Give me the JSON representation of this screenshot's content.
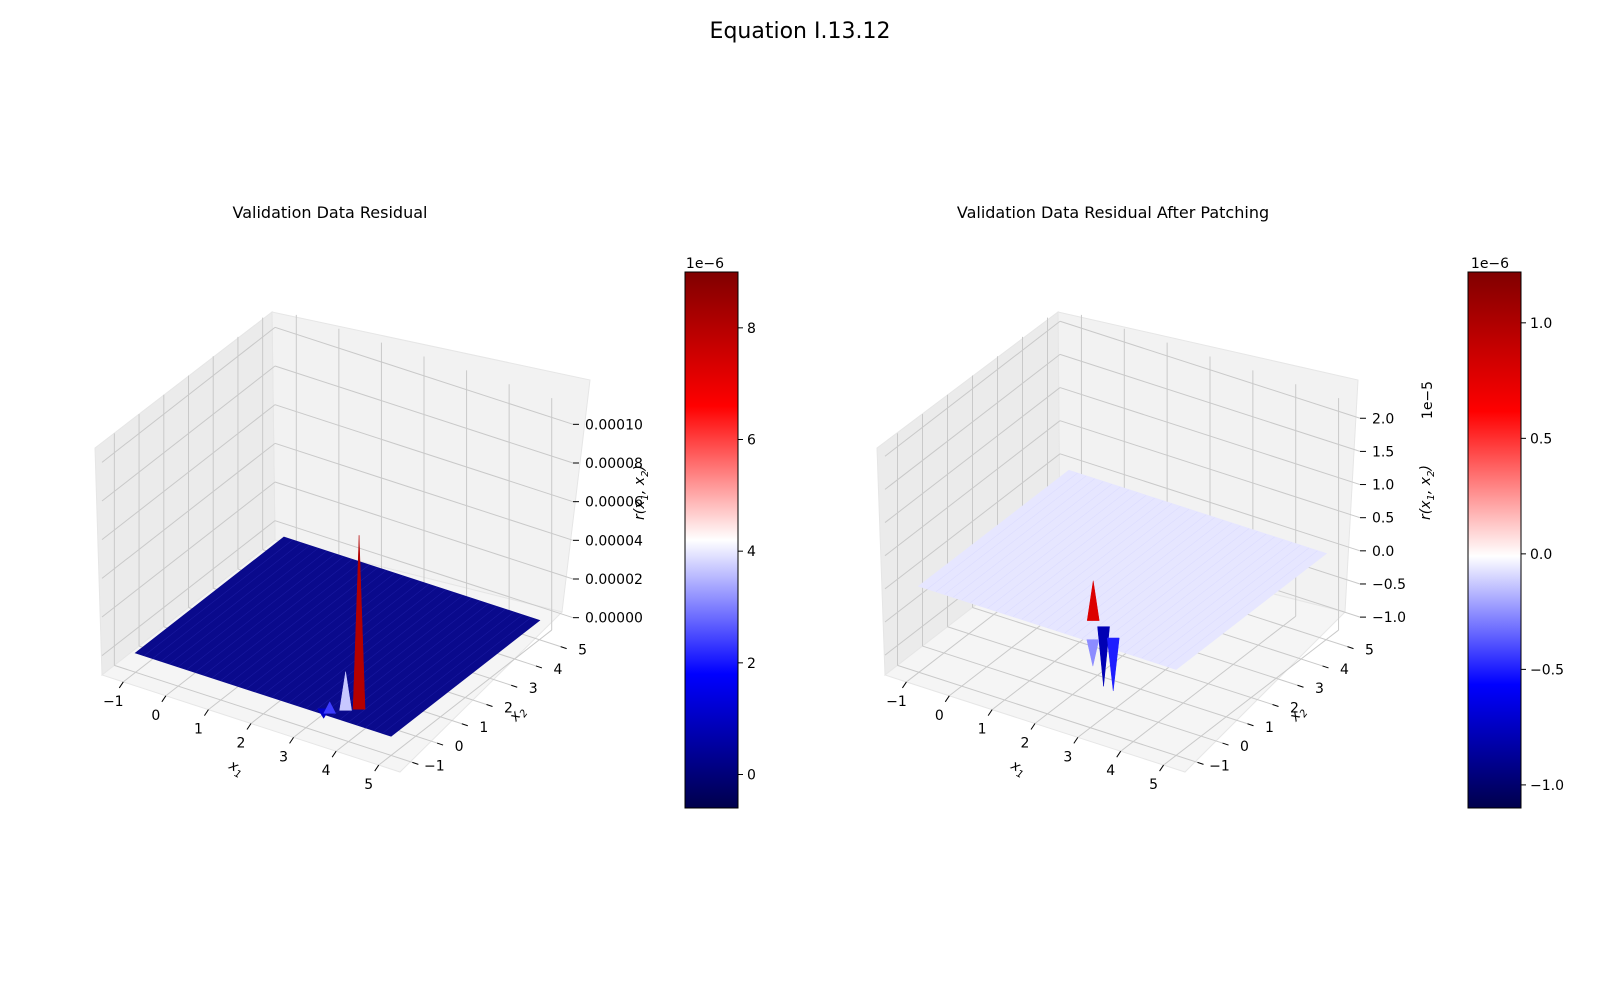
{
  "figure": {
    "title": "Equation I.13.12"
  },
  "chart_data": [
    {
      "type": "surface",
      "title": "Validation Data Residual",
      "xlabel": "x1",
      "ylabel": "x2",
      "zlabel": "r(x1, x2)",
      "xlim": [
        -1.5,
        5.5
      ],
      "ylim": [
        -1.5,
        5.5
      ],
      "zlim": [
        -1e-05,
        0.00011
      ],
      "x_ticks": [
        "−1",
        "0",
        "1",
        "2",
        "3",
        "4",
        "5"
      ],
      "y_ticks": [
        "−1",
        "0",
        "1",
        "2",
        "3",
        "4",
        "5"
      ],
      "z_ticks": [
        {
          "value": 0.0,
          "label": "0.00000"
        },
        {
          "value": 2e-05,
          "label": "0.00002"
        },
        {
          "value": 4e-05,
          "label": "0.00004"
        },
        {
          "value": 6e-05,
          "label": "0.00006"
        },
        {
          "value": 8e-05,
          "label": "0.00008"
        },
        {
          "value": 0.0001,
          "label": "0.00010"
        }
      ],
      "surface": {
        "x_range": [
          -1,
          5
        ],
        "y_range": [
          -1,
          5
        ],
        "base_value": 0.0,
        "color": "#0a0a8c"
      },
      "spikes": [
        {
          "x": 3.9,
          "y": -0.4,
          "z": 9e-05,
          "color": "#b40000"
        },
        {
          "x": 3.7,
          "y": -0.6,
          "z": 2e-05,
          "color": "#c8c8ff"
        },
        {
          "x": 3.3,
          "y": -0.8,
          "z": -5e-06,
          "color": "#0000c8"
        },
        {
          "x": 3.5,
          "y": -0.9,
          "z": 6e-06,
          "color": "#3c3cff"
        }
      ],
      "colorbar": {
        "cmap": "seismic",
        "range": [
          -0.6,
          9.0
        ],
        "multiplier": "1e−6",
        "ticks": [
          {
            "value": 0,
            "label": "0"
          },
          {
            "value": 2,
            "label": "2"
          },
          {
            "value": 4,
            "label": "4"
          },
          {
            "value": 6,
            "label": "6"
          },
          {
            "value": 8,
            "label": "8"
          }
        ]
      }
    },
    {
      "type": "surface",
      "title": "Validation Data Residual After Patching",
      "xlabel": "x1",
      "ylabel": "x2",
      "zlabel": "r(x1, x2)",
      "z_multiplier": "1e−5",
      "xlim": [
        -1.5,
        5.5
      ],
      "ylim": [
        -1.5,
        5.5
      ],
      "zlim": [
        -1.3,
        2.2
      ],
      "x_ticks": [
        "−1",
        "0",
        "1",
        "2",
        "3",
        "4",
        "5"
      ],
      "y_ticks": [
        "−1",
        "0",
        "1",
        "2",
        "3",
        "4",
        "5"
      ],
      "z_ticks": [
        {
          "value": -1.0,
          "label": "−1.0"
        },
        {
          "value": -0.5,
          "label": "−0.5"
        },
        {
          "value": 0.0,
          "label": "0.0"
        },
        {
          "value": 0.5,
          "label": "0.5"
        },
        {
          "value": 1.0,
          "label": "1.0"
        },
        {
          "value": 1.5,
          "label": "1.5"
        },
        {
          "value": 2.0,
          "label": "2.0"
        }
      ],
      "surface": {
        "x_range": [
          -1,
          5
        ],
        "y_range": [
          -1,
          5
        ],
        "base_value": 0.0,
        "color": "#e6e6ff"
      },
      "spikes": [
        {
          "x": 2.6,
          "y": -0.2,
          "z": 0.6,
          "color": "#dc0000"
        },
        {
          "x": 2.9,
          "y": -0.3,
          "z": -0.9,
          "color": "#0000b4"
        },
        {
          "x": 3.3,
          "y": -0.6,
          "z": -0.8,
          "color": "#1e1eff"
        },
        {
          "x": 3.0,
          "y": -0.9,
          "z": -0.4,
          "color": "#8c8cff"
        }
      ],
      "colorbar": {
        "cmap": "seismic",
        "range": [
          -1.1,
          1.22
        ],
        "multiplier": "1e−6",
        "ticks": [
          {
            "value": -1.0,
            "label": "−1.0"
          },
          {
            "value": -0.5,
            "label": "−0.5"
          },
          {
            "value": 0.0,
            "label": "0.0"
          },
          {
            "value": 0.5,
            "label": "0.5"
          },
          {
            "value": 1.0,
            "label": "1.0"
          }
        ]
      }
    }
  ]
}
